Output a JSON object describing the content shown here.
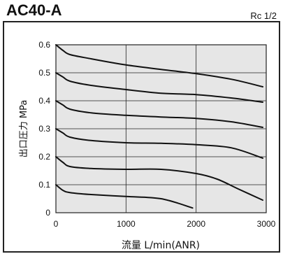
{
  "header": {
    "model": "AC40-A",
    "port": "Rc 1/2"
  },
  "chart_data": {
    "type": "line",
    "xlabel": "流量  L/min(ANR)",
    "ylabel": "出口圧力  MPa",
    "xlim": [
      0,
      3000
    ],
    "ylim": [
      0,
      0.6
    ],
    "x_ticks": [
      "0",
      "1000",
      "2000",
      "3000"
    ],
    "y_ticks": [
      "0",
      "0.1",
      "0.2",
      "0.3",
      "0.4",
      "0.5",
      "0.6"
    ],
    "grid": true,
    "colors": {
      "background": "#e6e6e6",
      "curve": "#111111",
      "grid": "#222222"
    },
    "series": [
      {
        "x": [
          0,
          100,
          200,
          500,
          1000,
          1500,
          2000,
          2500,
          2950
        ],
        "y": [
          0.6,
          0.58,
          0.565,
          0.55,
          0.528,
          0.512,
          0.497,
          0.477,
          0.45
        ]
      },
      {
        "x": [
          0,
          100,
          200,
          500,
          1000,
          1500,
          2000,
          2500,
          2950
        ],
        "y": [
          0.5,
          0.485,
          0.47,
          0.455,
          0.44,
          0.427,
          0.422,
          0.41,
          0.395
        ]
      },
      {
        "x": [
          0,
          100,
          200,
          500,
          1000,
          1500,
          2000,
          2500,
          2950
        ],
        "y": [
          0.4,
          0.385,
          0.37,
          0.357,
          0.348,
          0.342,
          0.337,
          0.325,
          0.305
        ]
      },
      {
        "x": [
          0,
          100,
          200,
          500,
          1000,
          1500,
          2000,
          2500,
          2950
        ],
        "y": [
          0.3,
          0.285,
          0.27,
          0.258,
          0.25,
          0.248,
          0.243,
          0.232,
          0.195
        ]
      },
      {
        "x": [
          0,
          100,
          200,
          500,
          1000,
          1500,
          2000,
          2300,
          2600,
          2950
        ],
        "y": [
          0.2,
          0.18,
          0.165,
          0.158,
          0.155,
          0.155,
          0.14,
          0.12,
          0.085,
          0.045
        ]
      },
      {
        "x": [
          0,
          100,
          200,
          500,
          1000,
          1500,
          1950
        ],
        "y": [
          0.1,
          0.08,
          0.072,
          0.065,
          0.058,
          0.05,
          0.017
        ]
      }
    ]
  }
}
